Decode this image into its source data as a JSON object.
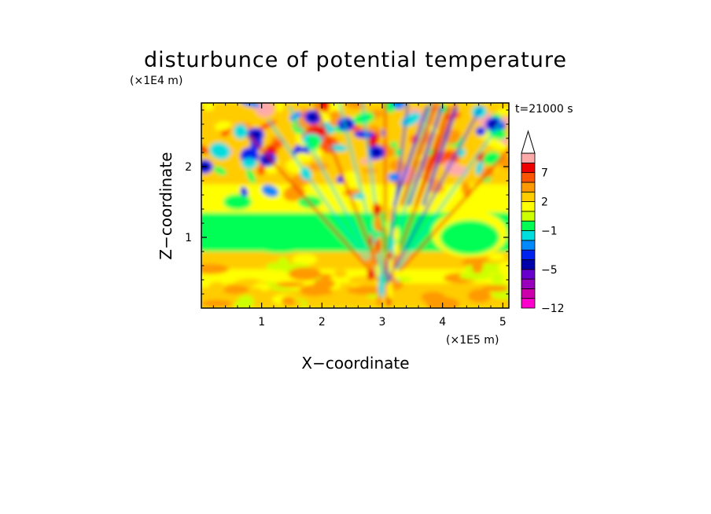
{
  "chart_data": {
    "type": "heatmap",
    "title": "disturbunce of potential temperature",
    "time_label": "t=21000 s",
    "xlabel": "X−coordinate",
    "ylabel": "Z−coordinate",
    "x_unit": "(×1E5 m)",
    "y_unit": "(×1E4 m)",
    "xlim": [
      0.0,
      5.1
    ],
    "ylim": [
      0.0,
      2.9
    ],
    "x_ticks": [
      {
        "value": 1,
        "label": "1"
      },
      {
        "value": 2,
        "label": "2"
      },
      {
        "value": 3,
        "label": "3"
      },
      {
        "value": 4,
        "label": "4"
      },
      {
        "value": 5,
        "label": "5"
      }
    ],
    "y_ticks": [
      {
        "value": 1,
        "label": "1"
      },
      {
        "value": 2,
        "label": "2"
      }
    ],
    "colorbar": {
      "levels": [
        -12,
        -10,
        -8,
        -6,
        -5,
        -4,
        -3,
        -2,
        -1,
        0,
        1,
        2,
        3,
        5,
        7,
        9,
        11
      ],
      "colors": [
        "#ff00cc",
        "#cc00aa",
        "#9900bb",
        "#6600cc",
        "#0000aa",
        "#0022ee",
        "#0088ff",
        "#00dddd",
        "#00ff55",
        "#ccff00",
        "#ffff00",
        "#ffcc00",
        "#ff9900",
        "#ff5500",
        "#ee0000",
        "#ffaaaa"
      ],
      "tick_labels": [
        {
          "value": 7,
          "label": "7"
        },
        {
          "value": 2,
          "label": "2"
        },
        {
          "value": -1,
          "label": "−1"
        },
        {
          "value": -5,
          "label": "−5"
        },
        {
          "value": -12,
          "label": "−12"
        }
      ],
      "extend": "max"
    }
  }
}
